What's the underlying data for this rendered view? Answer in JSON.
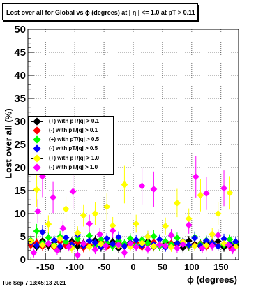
{
  "header": {
    "title": "Lost over all for Global vs ϕ (degrees) at | η | <= 1.0 at pT > 0.11"
  },
  "footer": {
    "timestamp": "Tue Sep  7 13:45:13 2021"
  },
  "chart_data": {
    "type": "scatter",
    "title": "Lost over all for Global vs ϕ (degrees) at | η | <= 1.0 at pT > 0.11",
    "xlabel": "ϕ (degrees)",
    "ylabel": "Lost over all (%)",
    "xlim": [
      -180,
      180
    ],
    "ylim": [
      0,
      50
    ],
    "xticks": [
      -150,
      -100,
      -50,
      0,
      50,
      100,
      150
    ],
    "yticks": [
      0,
      5,
      10,
      15,
      20,
      25,
      30,
      35,
      40,
      45,
      50
    ],
    "grid": true,
    "legend_position": "middle-left",
    "series": [
      {
        "name": "(+) with pT/|q| > 0.1",
        "color": "#000000",
        "x": [
          -175,
          -165,
          -155,
          -145,
          -135,
          -125,
          -115,
          -105,
          -95,
          -85,
          -75,
          -65,
          -55,
          -45,
          -35,
          -25,
          -15,
          -5,
          5,
          15,
          25,
          35,
          45,
          55,
          65,
          75,
          85,
          95,
          105,
          115,
          125,
          135,
          145,
          155,
          165,
          175
        ],
        "y": [
          3.5,
          2.8,
          4.1,
          3.0,
          3.8,
          2.6,
          3.3,
          4.0,
          2.9,
          3.6,
          3.1,
          4.2,
          2.7,
          3.4,
          3.9,
          2.5,
          3.2,
          3.7,
          2.9,
          3.5,
          4.0,
          2.8,
          3.3,
          3.8,
          3.0,
          3.6,
          2.6,
          4.1,
          3.4,
          2.9,
          3.7,
          3.2,
          4.0,
          2.7,
          3.5,
          3.1
        ]
      },
      {
        "name": "(-) with pT/|q| > 0.1",
        "color": "#ff0000",
        "x": [
          -175,
          -165,
          -155,
          -145,
          -135,
          -125,
          -115,
          -105,
          -95,
          -85,
          -75,
          -65,
          -55,
          -45,
          -35,
          -25,
          -15,
          -5,
          5,
          15,
          25,
          35,
          45,
          55,
          65,
          75,
          85,
          95,
          105,
          115,
          125,
          135,
          145,
          155,
          165,
          175
        ],
        "y": [
          3.1,
          3.7,
          2.9,
          3.4,
          2.7,
          3.9,
          3.0,
          3.5,
          3.8,
          2.6,
          3.3,
          3.0,
          3.9,
          2.8,
          3.2,
          3.6,
          2.9,
          3.1,
          3.7,
          2.7,
          3.4,
          3.8,
          3.0,
          2.8,
          3.6,
          3.2,
          3.9,
          2.9,
          3.1,
          3.5,
          2.8,
          3.8,
          3.0,
          3.4,
          2.9,
          3.6
        ]
      },
      {
        "name": "(+) with pT/|q| > 0.5",
        "color": "#00ff00",
        "x": [
          -175,
          -165,
          -155,
          -145,
          -135,
          -125,
          -115,
          -105,
          -95,
          -85,
          -75,
          -65,
          -55,
          -45,
          -35,
          -25,
          -15,
          -5,
          5,
          15,
          25,
          35,
          45,
          55,
          65,
          75,
          85,
          95,
          105,
          115,
          125,
          135,
          145,
          155,
          165,
          175
        ],
        "y": [
          4.2,
          6.2,
          3.6,
          4.8,
          3.2,
          5.0,
          3.9,
          2.8,
          4.5,
          3.4,
          5.2,
          3.0,
          4.4,
          3.7,
          2.9,
          4.1,
          3.5,
          4.6,
          3.1,
          4.3,
          3.6,
          5.1,
          2.9,
          4.0,
          3.3,
          4.7,
          3.8,
          3.0,
          4.9,
          3.4,
          4.2,
          3.7,
          5.3,
          3.2,
          4.4,
          3.6
        ]
      },
      {
        "name": "(-) with pT/|q| > 0.5",
        "color": "#0000ff",
        "x": [
          -175,
          -165,
          -155,
          -145,
          -135,
          -125,
          -115,
          -105,
          -95,
          -85,
          -75,
          -65,
          -55,
          -45,
          -35,
          -25,
          -15,
          -5,
          5,
          15,
          25,
          35,
          45,
          55,
          65,
          75,
          85,
          95,
          105,
          115,
          125,
          135,
          145,
          155,
          165,
          175
        ],
        "y": [
          3.8,
          3.1,
          6.0,
          3.5,
          4.2,
          2.9,
          4.8,
          3.3,
          5.4,
          3.0,
          4.1,
          3.7,
          2.8,
          4.6,
          3.4,
          4.9,
          2.9,
          3.6,
          4.3,
          3.1,
          5.0,
          3.3,
          4.4,
          2.7,
          5.3,
          3.5,
          4.0,
          3.2,
          4.7,
          3.0,
          4.1,
          3.6,
          2.9,
          4.5,
          3.3,
          3.9
        ]
      },
      {
        "name": "(+) with pT/|q| > 1.0",
        "color": "#ffff00",
        "x": [
          -175,
          -165,
          -155,
          -145,
          -135,
          -125,
          -115,
          -105,
          -95,
          -85,
          -75,
          -65,
          -55,
          -45,
          -35,
          -25,
          -15,
          -5,
          5,
          15,
          25,
          35,
          45,
          55,
          65,
          75,
          85,
          95,
          105,
          115,
          125,
          135,
          145,
          155,
          165,
          175
        ],
        "y": [
          4.0,
          15.2,
          3.2,
          7.7,
          3.0,
          4.5,
          11.0,
          2.5,
          5.8,
          9.6,
          2.8,
          10.0,
          3.4,
          11.5,
          7.4,
          3.0,
          16.3,
          2.8,
          7.8,
          3.6,
          5.0,
          2.9,
          3.3,
          7.3,
          2.7,
          12.3,
          3.9,
          8.9,
          3.0,
          14.0,
          3.1,
          5.5,
          10.0,
          3.5,
          14.5,
          2.8
        ]
      },
      {
        "name": "(-) with pT/|q| > 1.0",
        "color": "#ff00ff",
        "x": [
          -170,
          -163,
          -155,
          -145,
          -137,
          -130,
          -120,
          -110,
          -103,
          -95,
          -85,
          -75,
          -65,
          -57,
          -47,
          -35,
          -25,
          -15,
          -5,
          5,
          15,
          25,
          35,
          45,
          55,
          65,
          75,
          85,
          95,
          107,
          118,
          125,
          135,
          145,
          155,
          163,
          170
        ],
        "y": [
          1.5,
          10.5,
          18.1,
          3.5,
          13.5,
          2.0,
          6.8,
          2.8,
          14.8,
          1.0,
          3.5,
          7.8,
          2.2,
          5.5,
          3.0,
          6.3,
          3.2,
          1.5,
          3.5,
          2.8,
          16.0,
          2.3,
          15.3,
          3.2,
          3.0,
          5.3,
          2.5,
          3.3,
          7.5,
          18.0,
          2.5,
          14.4,
          3.0,
          5.3,
          15.5,
          3.2,
          2.2
        ]
      }
    ]
  }
}
